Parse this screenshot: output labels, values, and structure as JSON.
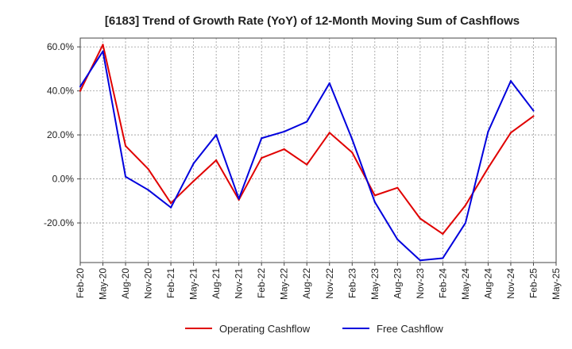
{
  "chart_data": {
    "type": "line",
    "title": "[6183]  Trend of Growth Rate (YoY) of 12-Month Moving Sum of Cashflows",
    "xlabel": "",
    "ylabel": "",
    "x_tick_labels": [
      "Feb-20",
      "May-20",
      "Aug-20",
      "Nov-20",
      "Feb-21",
      "May-21",
      "Aug-21",
      "Nov-21",
      "Feb-22",
      "May-22",
      "Aug-22",
      "Nov-22",
      "Feb-23",
      "May-23",
      "Aug-23",
      "Nov-23",
      "Feb-24",
      "May-24",
      "Aug-24",
      "Nov-24",
      "Feb-25",
      "May-25"
    ],
    "y_ticks": [
      60,
      40,
      20,
      0,
      -20
    ],
    "y_tick_labels": [
      "60.0%",
      "40.0%",
      "20.0%",
      "0.0%",
      "-20.0%"
    ],
    "ylim": [
      -38,
      64
    ],
    "grid": true,
    "legend_position": "bottom",
    "series": [
      {
        "name": "Operating Cashflow",
        "color": "#e00000",
        "values": [
          40,
          61,
          15,
          4.5,
          -11,
          -1,
          8.5,
          -9.5,
          9.5,
          13.5,
          6.5,
          21,
          12,
          -7.5,
          -4,
          -18,
          -25,
          -12,
          5,
          21,
          28.5
        ]
      },
      {
        "name": "Free Cashflow",
        "color": "#0000dd",
        "values": [
          42,
          58,
          1,
          -5,
          -13,
          7,
          20,
          -9,
          18.5,
          21.5,
          26,
          43.5,
          18,
          -10.5,
          -27.5,
          -37,
          -36,
          -20,
          21.5,
          44.5,
          31
        ]
      }
    ]
  }
}
